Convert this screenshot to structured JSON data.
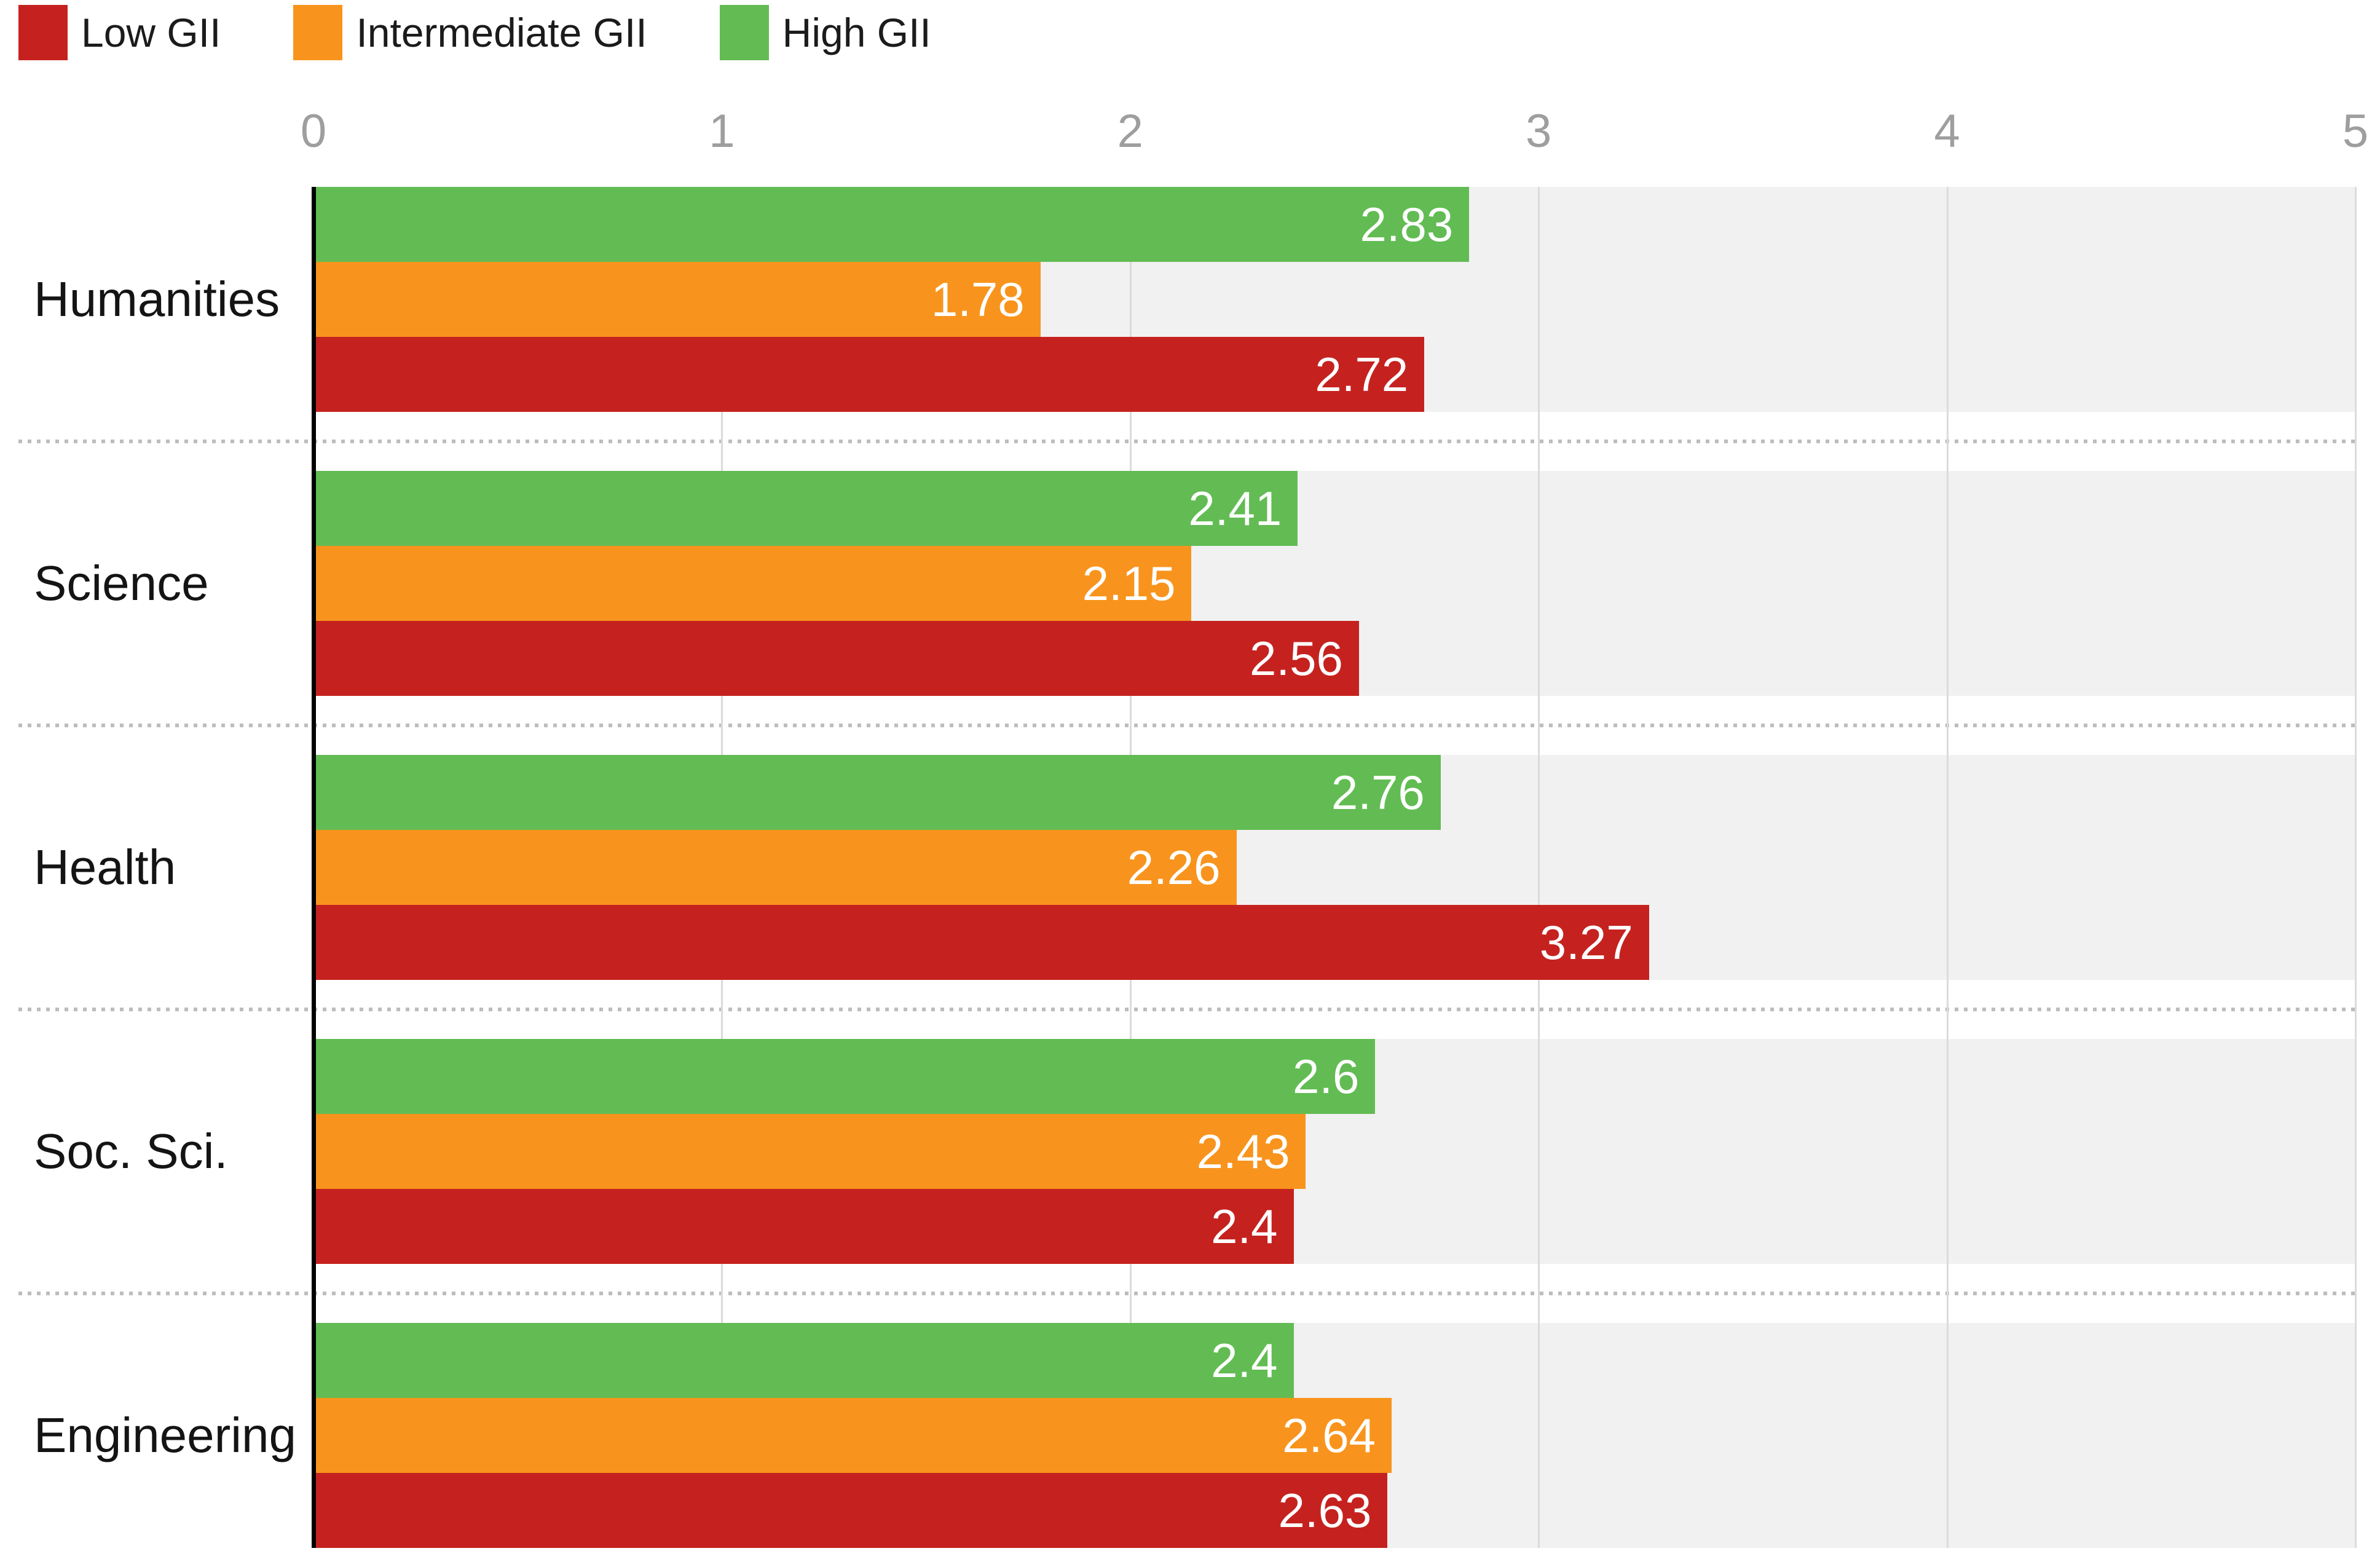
{
  "chart_data": {
    "type": "bar",
    "orientation": "horizontal",
    "title": "",
    "categories": [
      "Humanities",
      "Science",
      "Health",
      "Soc. Sci.",
      "Engineering"
    ],
    "series": [
      {
        "name": "Low GII",
        "color": "#c5221f",
        "values": [
          2.72,
          2.56,
          3.27,
          2.4,
          2.63
        ],
        "labels": [
          "2.72",
          "2.56",
          "3.27",
          "2.4",
          "2.63"
        ]
      },
      {
        "name": "Intermediate GII",
        "color": "#f8941d",
        "values": [
          1.78,
          2.15,
          2.26,
          2.43,
          2.64
        ],
        "labels": [
          "1.78",
          "2.15",
          "2.26",
          "2.43",
          "2.64"
        ]
      },
      {
        "name": "High GII",
        "color": "#62bc53",
        "values": [
          2.83,
          2.41,
          2.76,
          2.6,
          2.4
        ],
        "labels": [
          "2.83",
          "2.41",
          "2.76",
          "2.6",
          "2.4"
        ]
      }
    ],
    "bar_stack_order_top_to_bottom": [
      "High GII",
      "Intermediate GII",
      "Low GII"
    ],
    "x_axis": {
      "min": 0,
      "max": 5,
      "ticks": [
        0,
        1,
        2,
        3,
        4,
        5
      ],
      "position": "top"
    },
    "xlabel": "",
    "ylabel": "",
    "legend_position": "top-left",
    "grid": true,
    "value_labels_inside_bars": true
  },
  "styles": {
    "background": "#ffffff",
    "plot_band": "#f1f1f1",
    "gridline": "#dbdbdb",
    "axis_line": "#000000",
    "tick_label": "#9e9e9e",
    "category_label": "#141414",
    "legend_label": "#1b1b1b",
    "value_label": "#ffffff",
    "separator_dots": "#bdbdbd"
  }
}
